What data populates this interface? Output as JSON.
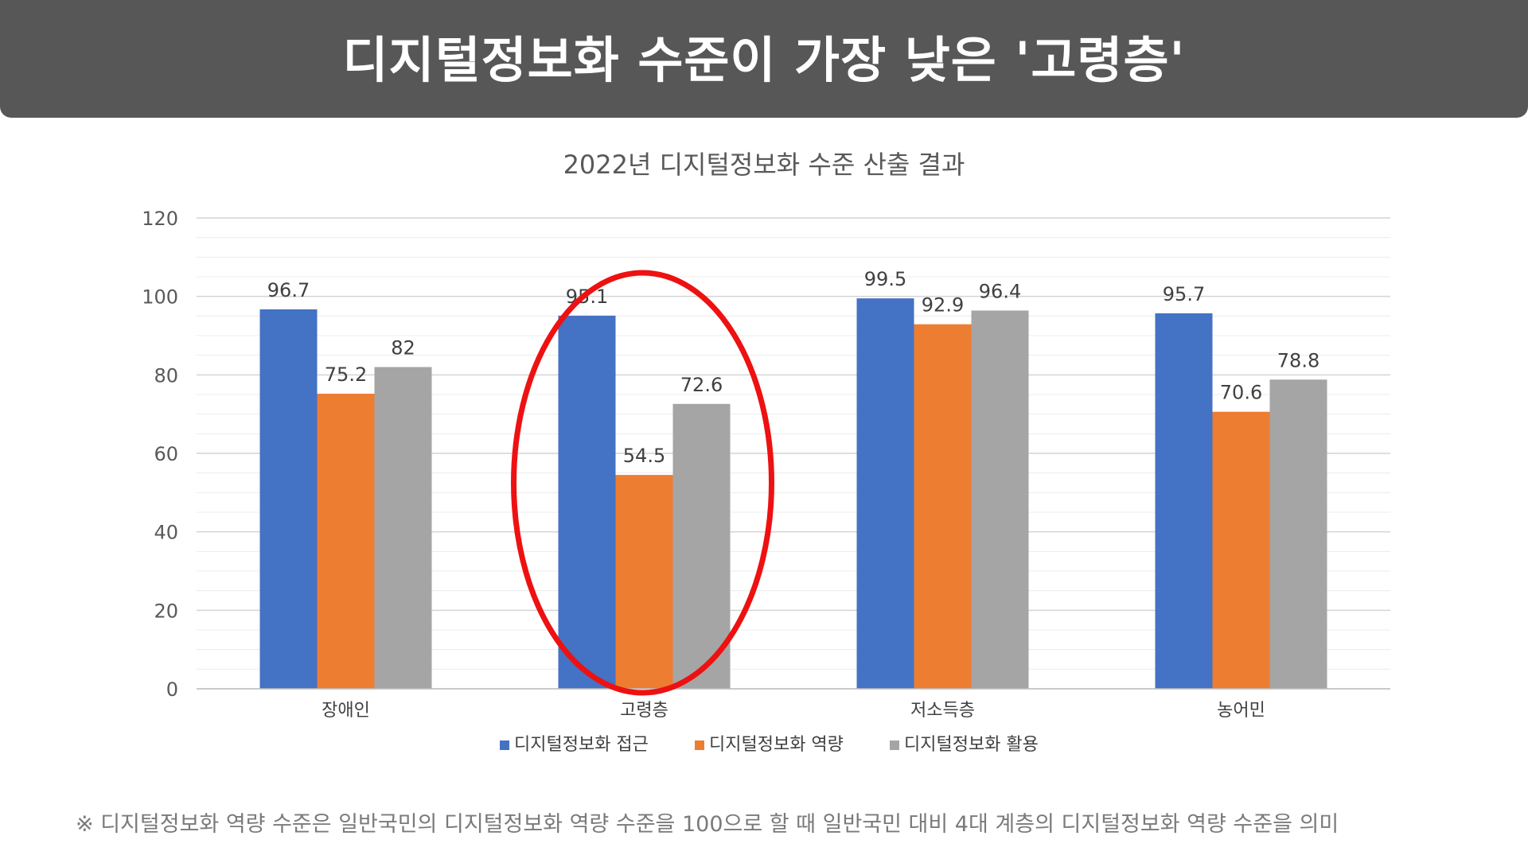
{
  "banner": {
    "title": "디지털정보화 수준이 가장 낮은 '고령층'"
  },
  "footnote": "※ 디지털정보화 역량 수준은 일반국민의 디지털정보화 역량 수준을 100으로 할 때 일반국민 대비 4대 계층의 디지털정보화 역량 수준을 의미",
  "highlight": {
    "category": "고령층",
    "color": "#ee1111"
  },
  "chart_data": {
    "type": "bar",
    "title": "2022년 디지털정보화 수준 산출 결과",
    "xlabel": "",
    "ylabel": "",
    "ylim": [
      0,
      120
    ],
    "yticks": [
      "0",
      "20",
      "40",
      "60",
      "80",
      "100",
      "120"
    ],
    "grid": true,
    "legend_position": "bottom",
    "categories": [
      "장애인",
      "고령층",
      "저소득층",
      "농어민"
    ],
    "series": [
      {
        "name": "디지털정보화 접근",
        "color": "#4472c4",
        "values": [
          96.7,
          95.1,
          99.5,
          95.7
        ],
        "labels": [
          "96.7",
          "95.1",
          "99.5",
          "95.7"
        ]
      },
      {
        "name": "디지털정보화 역량",
        "color": "#ed7d31",
        "values": [
          75.2,
          54.5,
          92.9,
          70.6
        ],
        "labels": [
          "75.2",
          "54.5",
          "92.9",
          "70.6"
        ]
      },
      {
        "name": "디지털정보화 활용",
        "color": "#a5a5a5",
        "values": [
          82,
          72.6,
          96.4,
          78.8
        ],
        "labels": [
          "82",
          "72.6",
          "96.4",
          "78.8"
        ]
      }
    ]
  }
}
